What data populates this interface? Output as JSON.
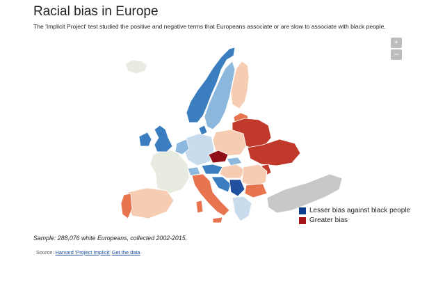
{
  "title": "Racial bias in Europe",
  "subtitle": "The 'Implicit Project' test studied the positive and negative terms that Europeans associate or are slow to associate with black people.",
  "zoom": {
    "in_label": "+",
    "out_label": "–"
  },
  "legend": [
    {
      "label": "Lesser bias against black people",
      "color": "#0d3b8e"
    },
    {
      "label": "Greater bias",
      "color": "#a4161a"
    }
  ],
  "colors": {
    "no_data": "#c8c8c8",
    "neutral": "#e8ece0",
    "strong_low": "#1f4f9e",
    "low": "#3a7ec0",
    "mid_low": "#8bb8dc",
    "light_low": "#c9dcee",
    "light_high": "#f6cdb2",
    "mid_high": "#e8734f",
    "high": "#c0392b",
    "strong_high": "#8e0d16"
  },
  "sample_note": "Sample: 288,076 white Europeans, collected 2002-2015.",
  "source": {
    "prefix": "Source:",
    "link1": "Harvard 'Project Implicit'",
    "link2": "Get the data"
  }
}
